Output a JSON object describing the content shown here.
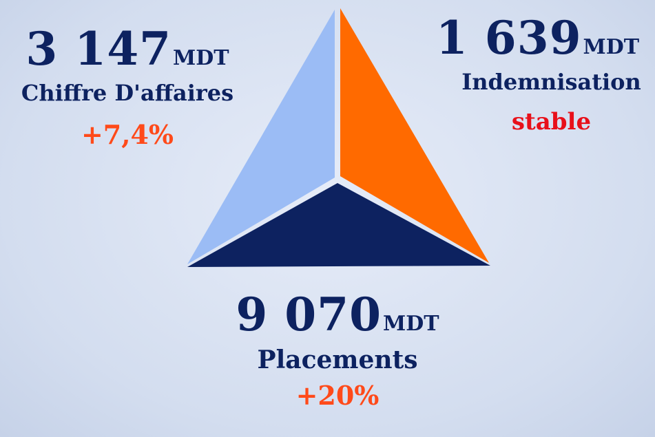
{
  "blocks": [
    {
      "value": "3 147",
      "unit": "MDT",
      "label": "Chiffre D'affaires",
      "change": "+7,4%"
    },
    {
      "value": "1 639",
      "unit": "MDT",
      "label": "Indemnisation",
      "change": "stable"
    },
    {
      "value": "9 070",
      "unit": "MDT",
      "label": "Placements",
      "change": "+20%"
    }
  ]
}
